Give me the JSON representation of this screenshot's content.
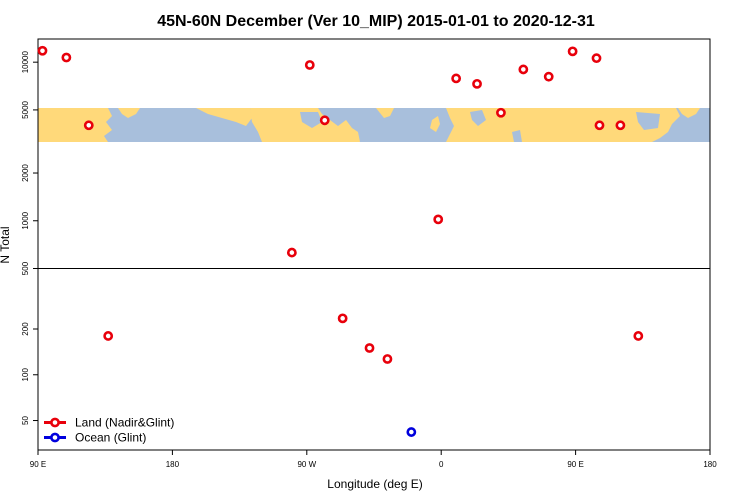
{
  "chart_data": {
    "type": "scatter",
    "title": "45N-60N December (Ver 10_MIP)   2015-01-01 to 2020-12-31",
    "xlabel": "Longitude (deg E)",
    "ylabel": "N Total",
    "x_ticks": [
      "90 E",
      "180",
      "90 W",
      "0",
      "90 E",
      "180"
    ],
    "y_ticks": [
      "50",
      "100",
      "200",
      "500",
      "1000",
      "2000",
      "5000",
      "10000"
    ],
    "y_scale": "log",
    "background_map": "world-map-strip-45N-60N",
    "colors": {
      "land": "#e8000b",
      "ocean": "#0000dd",
      "map_land": "#ffd97a",
      "map_ocean": "#a8bfdc"
    },
    "series": [
      {
        "name": "Land (Nadir&Glint)",
        "color": "#e8000b",
        "points": [
          {
            "x": 93,
            "y": 11800
          },
          {
            "x": 109,
            "y": 10700
          },
          {
            "x": 124,
            "y": 4000
          },
          {
            "x": 137,
            "y": 180
          },
          {
            "x": 260,
            "y": 630
          },
          {
            "x": 272,
            "y": 9600
          },
          {
            "x": 282,
            "y": 4300
          },
          {
            "x": 294,
            "y": 235
          },
          {
            "x": 312,
            "y": 150
          },
          {
            "x": 324,
            "y": 127
          },
          {
            "x": 358,
            "y": 1020
          },
          {
            "x": 370,
            "y": 7900
          },
          {
            "x": 384,
            "y": 7300
          },
          {
            "x": 400,
            "y": 4800
          },
          {
            "x": 415,
            "y": 9000
          },
          {
            "x": 432,
            "y": 8100
          },
          {
            "x": 448,
            "y": 11700
          },
          {
            "x": 464,
            "y": 10600
          },
          {
            "x": 480,
            "y": 4000
          },
          {
            "x": 492,
            "y": 180
          },
          {
            "x": 466,
            "y": 4000
          }
        ]
      },
      {
        "name": "Ocean (Glint)",
        "color": "#0000dd",
        "points": [
          {
            "x": 340,
            "y": 42
          }
        ]
      }
    ],
    "legend": "bottom-left"
  }
}
